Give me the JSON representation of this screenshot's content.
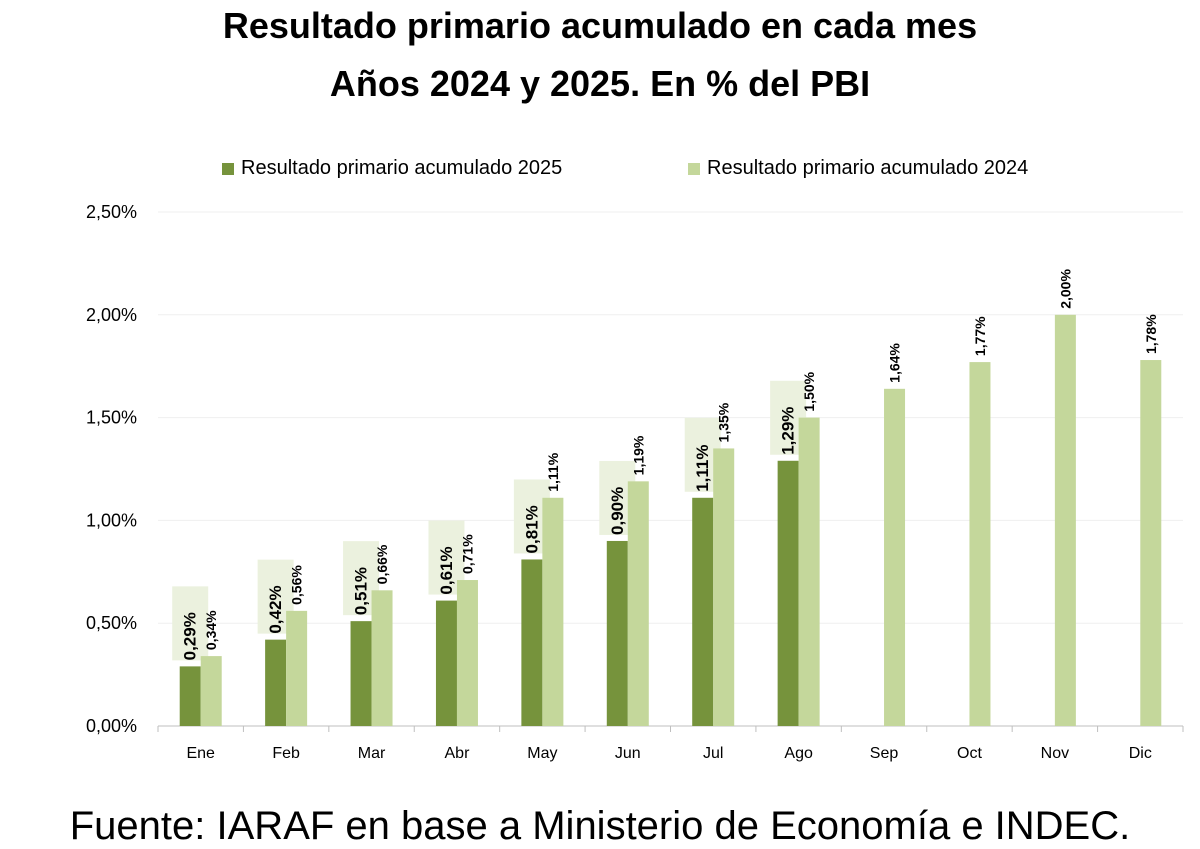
{
  "title_line1": "Resultado primario acumulado en cada mes",
  "title_line2": "Años 2024 y 2025. En % del PBI",
  "source": "Fuente: IARAF en base a Ministerio de Economía e INDEC.",
  "colors": {
    "series_2025": "#76933c",
    "series_2024": "#c4d79b",
    "label_bg": "#ebf1de",
    "grid": "#efefef",
    "axis": "#bfbfbf"
  },
  "chart_data": {
    "type": "bar",
    "categories": [
      "Ene",
      "Feb",
      "Mar",
      "Abr",
      "May",
      "Jun",
      "Jul",
      "Ago",
      "Sep",
      "Oct",
      "Nov",
      "Dic"
    ],
    "series": [
      {
        "name": "Resultado primario acumulado 2025",
        "values": [
          0.29,
          0.42,
          0.51,
          0.61,
          0.81,
          0.9,
          1.11,
          1.29,
          null,
          null,
          null,
          null
        ],
        "labels": [
          "0,29%",
          "0,42%",
          "0,51%",
          "0,61%",
          "0,81%",
          "0,90%",
          "1,11%",
          "1,29%",
          "",
          "",
          "",
          ""
        ]
      },
      {
        "name": "Resultado primario acumulado 2024",
        "values": [
          0.34,
          0.56,
          0.66,
          0.71,
          1.11,
          1.19,
          1.35,
          1.5,
          1.64,
          1.77,
          2.0,
          1.78
        ],
        "labels": [
          "0,34%",
          "0,56%",
          "0,66%",
          "0,71%",
          "1,11%",
          "1,19%",
          "1,35%",
          "1,50%",
          "1,64%",
          "1,77%",
          "2,00%",
          "1,78%"
        ]
      }
    ],
    "y_ticks": [
      "0,00%",
      "0,50%",
      "1,00%",
      "1,50%",
      "2,00%",
      "2,50%"
    ],
    "ylim": [
      0,
      2.5
    ],
    "grid": true,
    "legend_position": "top"
  }
}
